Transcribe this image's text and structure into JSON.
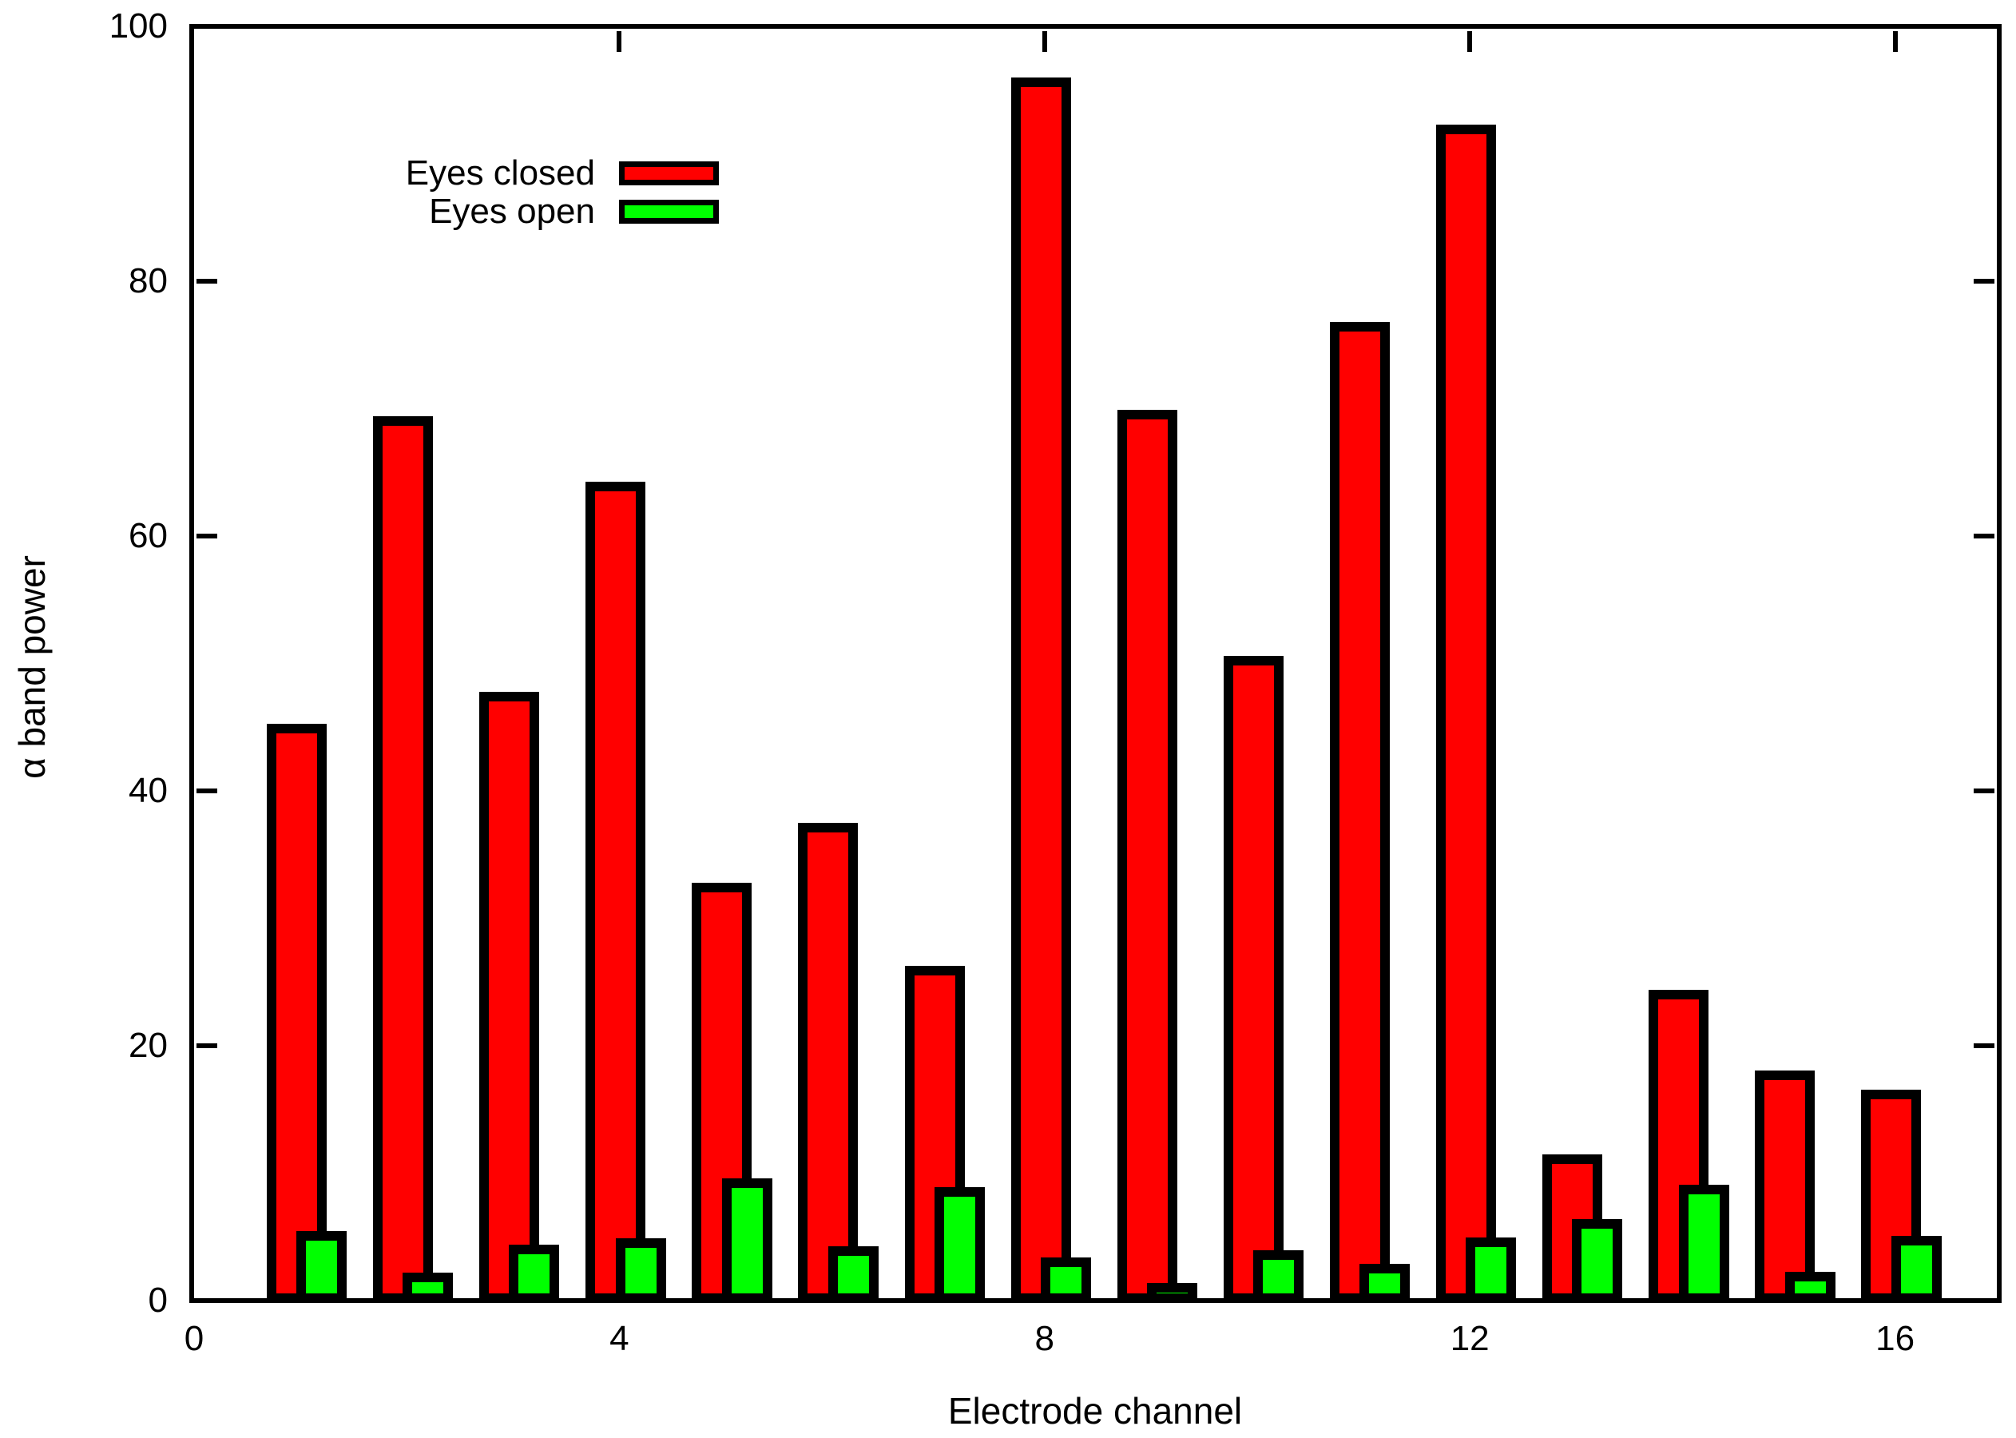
{
  "chart_data": {
    "type": "bar",
    "title": "",
    "xlabel": "Electrode channel",
    "ylabel": "α band power",
    "categories": [
      1,
      2,
      3,
      4,
      5,
      6,
      7,
      8,
      9,
      10,
      11,
      12,
      13,
      14,
      15,
      16
    ],
    "series": [
      {
        "name": "Eyes closed",
        "color": "#ff0000",
        "values": [
          44.9,
          69.0,
          47.4,
          63.9,
          32.4,
          37.1,
          25.9,
          95.6,
          69.5,
          50.2,
          76.4,
          91.9,
          11.1,
          24.0,
          17.7,
          16.2
        ]
      },
      {
        "name": "Eyes open",
        "color": "#00ff00",
        "values": [
          5.1,
          1.8,
          4.0,
          4.5,
          9.2,
          3.9,
          8.5,
          3.0,
          1.0,
          3.6,
          2.5,
          4.6,
          6.0,
          8.7,
          1.9,
          4.7
        ]
      }
    ],
    "xlim": [
      0,
      17
    ],
    "ylim": [
      0,
      100
    ],
    "x_tick_values": [
      0,
      4,
      8,
      12,
      16
    ],
    "x_tick_labels": [
      "0",
      "4",
      "8",
      "12",
      "16"
    ],
    "y_tick_values": [
      0,
      20,
      40,
      60,
      80,
      100
    ],
    "y_tick_labels": [
      "0",
      "20",
      "40",
      "60",
      "80",
      "100"
    ],
    "grid": false,
    "legend_position": "upper-left-inside",
    "background_color": "#ffffff",
    "border_color": "#000000"
  }
}
